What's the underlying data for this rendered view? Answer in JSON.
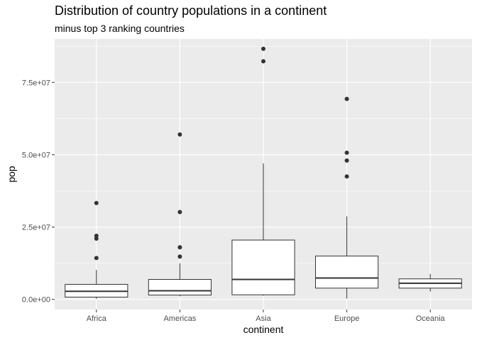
{
  "chart_data": {
    "type": "boxplot",
    "title": "Distribution of country populations in a continent",
    "subtitle": "minus top 3 ranking countries",
    "xlabel": "continent",
    "ylabel": "pop",
    "categories": [
      "Africa",
      "Americas",
      "Asia",
      "Europe",
      "Oceania"
    ],
    "ylim": [
      -3500000,
      90000000
    ],
    "yticks": [
      0,
      25000000,
      50000000,
      75000000
    ],
    "ytick_labels": [
      "0.0e+00",
      "2.5e+07",
      "5.0e+07",
      "7.5e+07"
    ],
    "grid": true,
    "boxes": [
      {
        "category": "Africa",
        "lower_whisker": 200000,
        "q1": 800000,
        "median": 2800000,
        "q3": 5200000,
        "upper_whisker": 10200000,
        "outliers": [
          14300000,
          21000000,
          22000000,
          33300000
        ]
      },
      {
        "category": "Americas",
        "lower_whisker": 1100000,
        "q1": 1500000,
        "median": 3000000,
        "q3": 6900000,
        "upper_whisker": 12500000,
        "outliers": [
          14800000,
          18000000,
          30200000,
          57000000
        ]
      },
      {
        "category": "Asia",
        "lower_whisker": 1300000,
        "q1": 1600000,
        "median": 6900000,
        "q3": 20500000,
        "upper_whisker": 47000000,
        "outliers": [
          82300000,
          86600000
        ]
      },
      {
        "category": "Europe",
        "lower_whisker": 300000,
        "q1": 3900000,
        "median": 7400000,
        "q3": 15000000,
        "upper_whisker": 28700000,
        "outliers": [
          42500000,
          48000000,
          50700000,
          69300000
        ]
      },
      {
        "category": "Oceania",
        "lower_whisker": 2700000,
        "q1": 3900000,
        "median": 5600000,
        "q3": 7100000,
        "upper_whisker": 8800000,
        "outliers": []
      }
    ]
  }
}
